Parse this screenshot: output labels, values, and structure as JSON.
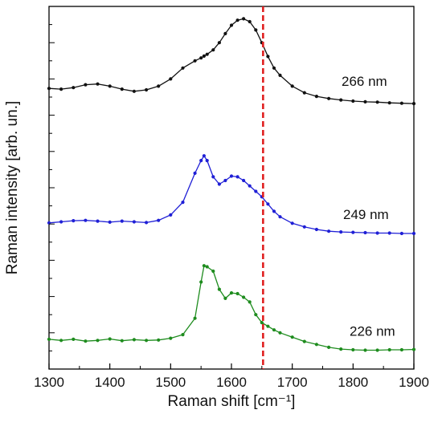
{
  "chart_data": {
    "type": "line",
    "xlabel": "Raman shift [cm⁻¹]",
    "ylabel": "Raman intensity [arb. un.]",
    "xlim": [
      1300,
      1900
    ],
    "ylim": [
      0,
      1
    ],
    "x_ticks": [
      "1300",
      "1400",
      "1500",
      "1600",
      "1700",
      "1800",
      "1900"
    ],
    "y_tick_labels": "none",
    "grid": false,
    "legend": "none",
    "reference_line": {
      "x": 1652,
      "style": "dashed",
      "color": "#e02020"
    },
    "x": [
      1300,
      1320,
      1340,
      1360,
      1380,
      1400,
      1420,
      1440,
      1460,
      1480,
      1500,
      1520,
      1540,
      1550,
      1555,
      1560,
      1570,
      1580,
      1590,
      1600,
      1610,
      1620,
      1630,
      1640,
      1650,
      1660,
      1670,
      1680,
      1700,
      1720,
      1740,
      1760,
      1780,
      1800,
      1820,
      1840,
      1860,
      1880,
      1900
    ],
    "series": [
      {
        "name": "266 nm",
        "color": "#111111",
        "values": [
          0.774,
          0.772,
          0.776,
          0.784,
          0.786,
          0.78,
          0.772,
          0.766,
          0.77,
          0.78,
          0.8,
          0.83,
          0.85,
          0.858,
          0.863,
          0.868,
          0.88,
          0.9,
          0.925,
          0.948,
          0.962,
          0.966,
          0.958,
          0.935,
          0.9,
          0.862,
          0.83,
          0.81,
          0.78,
          0.762,
          0.752,
          0.746,
          0.742,
          0.739,
          0.737,
          0.736,
          0.734,
          0.733,
          0.732
        ]
      },
      {
        "name": "249 nm",
        "color": "#1f1fd6",
        "values": [
          0.403,
          0.406,
          0.409,
          0.41,
          0.408,
          0.405,
          0.408,
          0.406,
          0.404,
          0.41,
          0.425,
          0.46,
          0.54,
          0.575,
          0.588,
          0.575,
          0.53,
          0.51,
          0.52,
          0.532,
          0.53,
          0.52,
          0.505,
          0.49,
          0.475,
          0.455,
          0.435,
          0.42,
          0.402,
          0.392,
          0.385,
          0.38,
          0.378,
          0.377,
          0.376,
          0.375,
          0.375,
          0.374,
          0.374
        ]
      },
      {
        "name": "226 nm",
        "color": "#1e8c1e",
        "values": [
          0.082,
          0.079,
          0.082,
          0.077,
          0.079,
          0.083,
          0.078,
          0.081,
          0.079,
          0.08,
          0.085,
          0.095,
          0.14,
          0.24,
          0.285,
          0.282,
          0.27,
          0.22,
          0.195,
          0.21,
          0.208,
          0.198,
          0.185,
          0.15,
          0.128,
          0.118,
          0.108,
          0.1,
          0.088,
          0.076,
          0.068,
          0.06,
          0.055,
          0.053,
          0.052,
          0.052,
          0.053,
          0.053,
          0.054
        ]
      }
    ]
  }
}
